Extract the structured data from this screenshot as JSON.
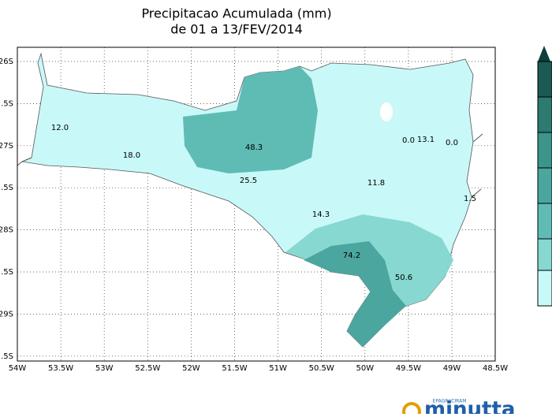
{
  "title": "Precipitacao Acumulada (mm)",
  "subtitle": "de 01 a 13/FEV/2014",
  "y_labels": [
    "26S",
    ".5S",
    "27S",
    ".5S",
    "28S",
    ".5S",
    "29S",
    ".5S"
  ],
  "x_labels": [
    "54W",
    "53.5W",
    "53W",
    "52.5W",
    "52W",
    "51.5W",
    "51W",
    "50.5W",
    "50W",
    "49.5W",
    "49W",
    "48.5W"
  ],
  "stations": [
    "12.0",
    "18.0",
    "48.3",
    "25.5",
    "11.8",
    "14.3",
    "74.2",
    "50.6",
    "0.0",
    "13.1",
    "0.0",
    "1.5"
  ],
  "logo": {
    "org": "EPAGRI/CIRAM",
    "name": "minutta"
  }
}
